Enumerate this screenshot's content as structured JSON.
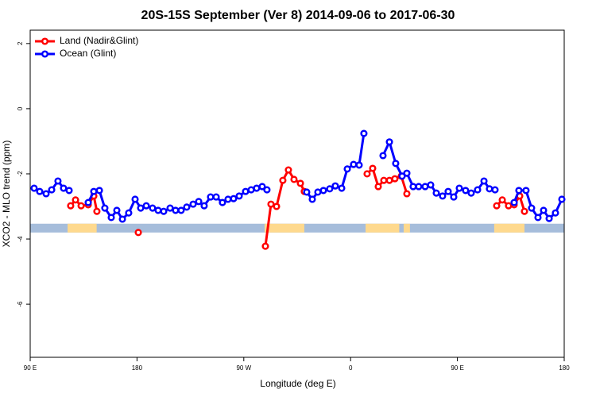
{
  "chart_data": {
    "type": "line",
    "title": "20S-15S September (Ver 8)   2014-09-06 to 2017-06-30",
    "x_label": "Longitude (deg E)",
    "y_label": "XCO2 - MLO trend (ppm)",
    "xlim": [
      90,
      540
    ],
    "ylim": [
      -7.63,
      2.41
    ],
    "xticks": [
      {
        "value": 90,
        "label": "90 E"
      },
      {
        "value": 180,
        "label": "180"
      },
      {
        "value": 270,
        "label": "90 W"
      },
      {
        "value": 360,
        "label": "0"
      },
      {
        "value": 450,
        "label": "90 E"
      },
      {
        "value": 540,
        "label": "180"
      }
    ],
    "yticks": [
      2,
      0,
      -2,
      -4,
      -6
    ],
    "legend": "top-left",
    "land_mask": {
      "ylim": [
        -3.8,
        -3.53
      ],
      "ocean_color": "#a6bddb",
      "land_color": "#fed98e",
      "land_ranges": [
        [
          121.5,
          146
        ],
        [
          287.5,
          321
        ],
        [
          372.6,
          401
        ],
        [
          404.7,
          410
        ],
        [
          481,
          506.5
        ]
      ]
    },
    "series": [
      {
        "name": "Land (Nadir&Glint)",
        "color": "#ff0000",
        "x": [
          124.1,
          128.2,
          132.9,
          138.9,
          143.6,
          146.2,
          null,
          181.1,
          null,
          288.2,
          292.9,
          297.6,
          302.9,
          307.6,
          312.3,
          317.7,
          321.0,
          null,
          373.9,
          378.6,
          383.3,
          388.0,
          392.7,
          397.3,
          402.7,
          407.4,
          null,
          483.1,
          487.8,
          493.1,
          497.8,
          502.5,
          506.5
        ],
        "values": [
          -2.98,
          -2.8,
          -2.98,
          -2.95,
          -2.68,
          -3.15,
          null,
          -3.8,
          null,
          -4.22,
          -2.93,
          -3.0,
          -2.2,
          -1.88,
          -2.17,
          -2.29,
          -2.54,
          null,
          -2.0,
          -1.83,
          -2.39,
          -2.2,
          -2.2,
          -2.15,
          -2.07,
          -2.61,
          null,
          -2.98,
          -2.8,
          -2.98,
          -2.95,
          -2.68,
          -3.15
        ]
      },
      {
        "name": "Ocean (Glint)",
        "color": "#0000ff",
        "x": [
          93.3,
          98.0,
          103.4,
          108.1,
          113.4,
          118.1,
          122.8,
          null,
          138.9,
          143.6,
          148.3,
          152.9,
          158.3,
          163.0,
          167.7,
          173.0,
          178.4,
          183.1,
          187.8,
          193.1,
          197.8,
          202.5,
          207.9,
          212.5,
          217.2,
          221.9,
          227.3,
          232.0,
          236.6,
          242.0,
          246.7,
          252.0,
          256.7,
          261.4,
          266.1,
          271.5,
          276.2,
          280.8,
          285.5,
          289.5,
          null,
          323.0,
          327.7,
          332.4,
          337.1,
          342.4,
          347.1,
          352.5,
          357.2,
          362.5,
          367.2,
          371.2,
          null,
          387.3,
          392.7,
          398.0,
          403.4,
          407.4,
          412.7,
          417.4,
          422.8,
          427.5,
          432.2,
          437.5,
          442.2,
          446.9,
          451.6,
          456.9,
          461.6,
          467.0,
          472.4,
          477.0,
          481.7,
          null,
          497.8,
          501.8,
          507.8,
          512.5,
          517.9,
          522.6,
          527.3,
          532.6,
          538.0
        ],
        "values": [
          -2.44,
          -2.54,
          -2.61,
          -2.49,
          -2.22,
          -2.44,
          -2.51,
          null,
          -2.88,
          -2.54,
          -2.51,
          -3.05,
          -3.34,
          -3.12,
          -3.39,
          -3.2,
          -2.78,
          -3.05,
          -2.98,
          -3.05,
          -3.12,
          -3.15,
          -3.05,
          -3.12,
          -3.12,
          -3.02,
          -2.93,
          -2.85,
          -2.98,
          -2.71,
          -2.71,
          -2.88,
          -2.78,
          -2.76,
          -2.68,
          -2.54,
          -2.49,
          -2.44,
          -2.39,
          -2.49,
          null,
          -2.56,
          -2.78,
          -2.56,
          -2.51,
          -2.46,
          -2.37,
          -2.44,
          -1.85,
          -1.71,
          -1.73,
          -0.76,
          null,
          -1.44,
          -1.02,
          -1.68,
          -2.07,
          -1.98,
          -2.39,
          -2.39,
          -2.39,
          -2.34,
          -2.59,
          -2.68,
          -2.54,
          -2.71,
          -2.44,
          -2.51,
          -2.59,
          -2.49,
          -2.22,
          -2.46,
          -2.49,
          null,
          -2.88,
          -2.51,
          -2.51,
          -3.05,
          -3.34,
          -3.12,
          -3.37,
          -3.2,
          -2.78
        ]
      }
    ]
  }
}
